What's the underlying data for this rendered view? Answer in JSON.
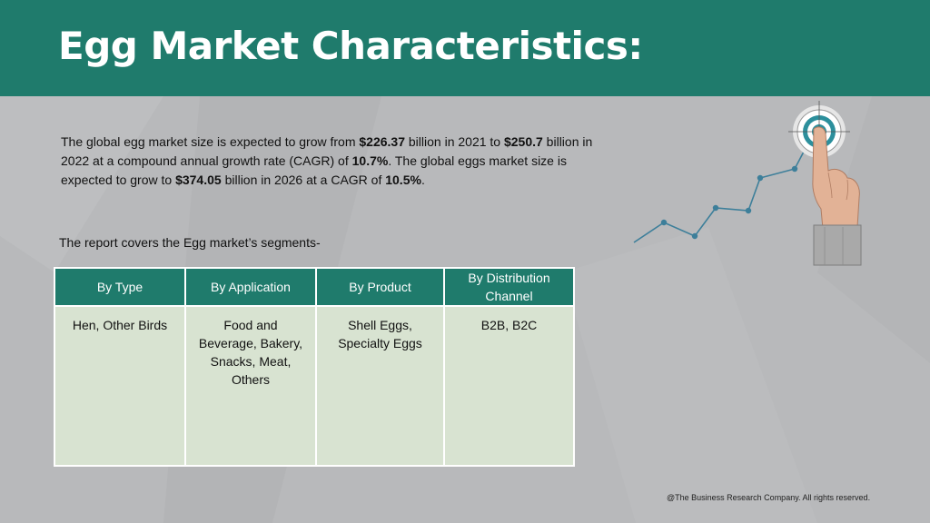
{
  "slide": {
    "title": "Egg Market Characteristics:",
    "intro": {
      "parts": [
        {
          "text": "The global egg market size is expected to grow from ",
          "bold": false
        },
        {
          "text": "$226.37",
          "bold": true
        },
        {
          "text": " billion in 2021 to ",
          "bold": false
        },
        {
          "text": "$250.7",
          "bold": true
        },
        {
          "text": " billion in 2022 at a compound annual growth rate (CAGR) of ",
          "bold": false
        },
        {
          "text": "10.7%",
          "bold": true
        },
        {
          "text": ". The global eggs market size is expected to grow to ",
          "bold": false
        },
        {
          "text": "$374.05",
          "bold": true
        },
        {
          "text": " billion in 2026 at a CAGR of ",
          "bold": false
        },
        {
          "text": "10.5%",
          "bold": true
        },
        {
          "text": ".",
          "bold": false
        }
      ]
    },
    "segments_intro": "The report covers the Egg market’s segments-",
    "table": {
      "headers": [
        "By Type",
        "By Application",
        "By Product",
        "By Distribution Channel"
      ],
      "cells": [
        "Hen, Other Birds",
        "Food and Beverage, Bakery, Snacks, Meat, Others",
        "Shell Eggs, Specialty Eggs",
        "B2B, B2C"
      ]
    },
    "footer": "@The Business Research Company. All rights reserved.",
    "graphic": {
      "icon": "hand-pointing-target-growth-chart-icon"
    },
    "colors": {
      "accent": "#1f7b6c",
      "background": "#b8b9bb",
      "table_cell": "#d8e3d1",
      "chart_line": "#3d7f9a"
    }
  }
}
